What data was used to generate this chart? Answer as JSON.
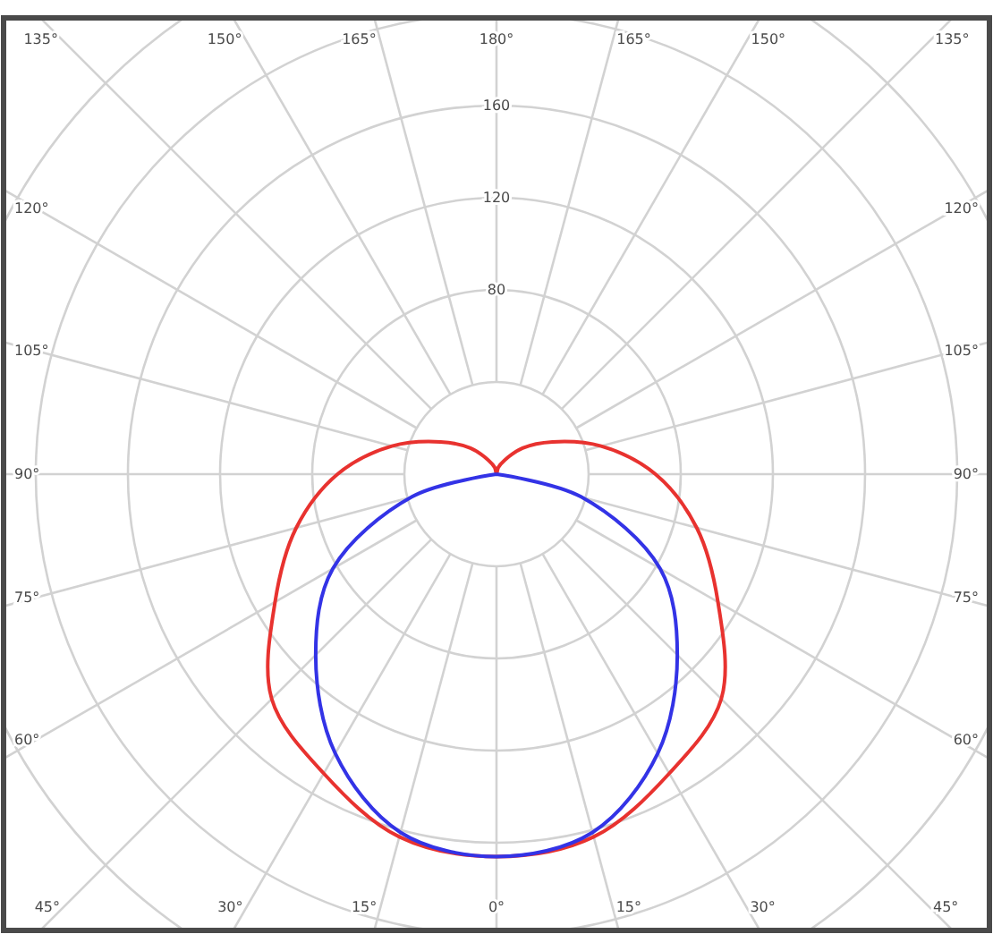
{
  "chart_data": {
    "type": "radar",
    "categories": [
      "180°",
      "165°",
      "150°",
      "135°",
      "120°",
      "105°",
      "90°",
      "75°",
      "60°",
      "45°",
      "30°",
      "15°",
      "0°",
      "15°",
      "30°",
      "45°",
      "60°",
      "75°",
      "90°",
      "105°",
      "120°",
      "135°",
      "150°",
      "165°"
    ],
    "series": [
      {
        "color": "#e8322f",
        "values": [
          0,
          3,
          7,
          16,
          28,
          47,
          69,
          90,
          111,
          138,
          150,
          163,
          166,
          163,
          150,
          138,
          111,
          90,
          69,
          47,
          28,
          16,
          7,
          3
        ]
      },
      {
        "color": "#3333e6",
        "values": [
          0,
          0,
          0,
          0,
          0,
          0,
          0,
          38,
          82,
          111,
          140,
          161,
          166,
          161,
          140,
          111,
          82,
          38,
          0,
          0,
          0,
          0,
          0,
          0
        ]
      }
    ],
    "ylim": [
      0,
      240
    ],
    "yticks": [
      80,
      120,
      160
    ],
    "grid": true
  }
}
